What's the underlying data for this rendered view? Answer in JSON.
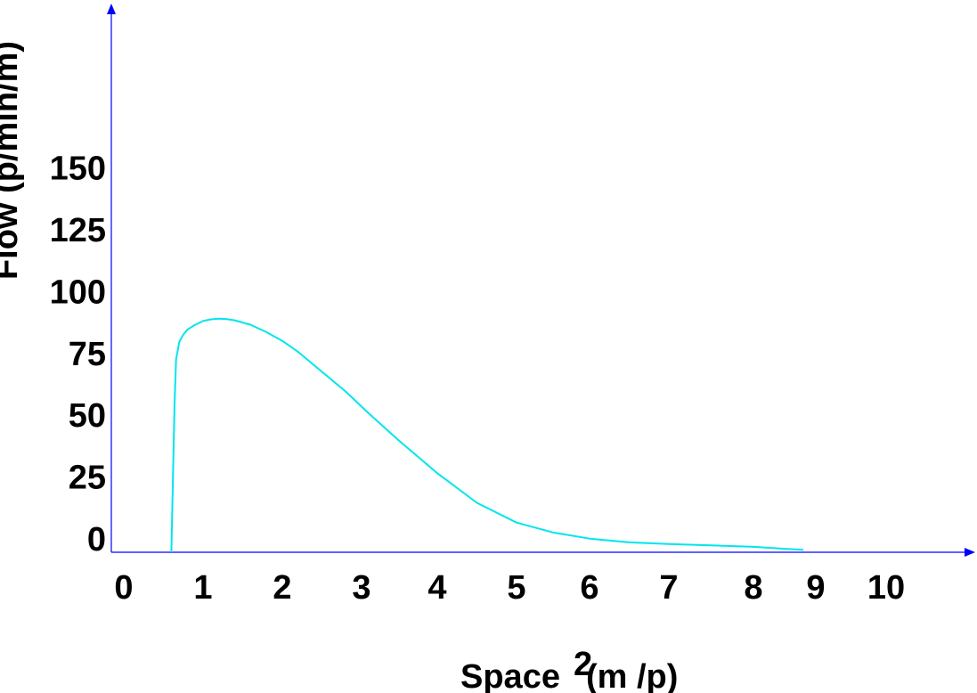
{
  "chart_data": {
    "type": "line",
    "xlabel": "Space (m /p)",
    "xlabel_parts": {
      "main": "Space",
      "superscript": "2",
      "rest": "(m /p)"
    },
    "ylabel": "Flow (p/min/m)",
    "x_ticks": [
      "0",
      "1",
      "2",
      "3",
      "4",
      "5",
      "6",
      "7",
      "8",
      "9",
      "10"
    ],
    "y_ticks": [
      "0",
      "25",
      "50",
      "75",
      "100",
      "125",
      "150"
    ],
    "xlim": [
      0,
      11
    ],
    "ylim": [
      0,
      220
    ],
    "grid": false,
    "axis_color": "#0000ff",
    "series": [
      {
        "color": "#00e5ee",
        "x": [
          0.6,
          0.62,
          0.64,
          0.66,
          0.7,
          0.75,
          0.8,
          0.9,
          1.0,
          1.1,
          1.2,
          1.3,
          1.4,
          1.6,
          1.8,
          2.0,
          2.2,
          2.5,
          2.8,
          3.1,
          3.5,
          4.0,
          4.5,
          5.0,
          5.5,
          6.0,
          6.5,
          7.0,
          7.5,
          8.0,
          8.5,
          8.8
        ],
        "y": [
          0,
          30,
          60,
          78,
          85,
          88,
          90,
          92,
          93.5,
          94.2,
          94.5,
          94.3,
          93.8,
          92,
          89,
          85.5,
          81,
          73,
          65,
          56,
          45,
          32,
          20,
          12,
          8,
          5.5,
          4,
          3.3,
          2.8,
          2.2,
          1.4,
          1
        ]
      }
    ]
  }
}
